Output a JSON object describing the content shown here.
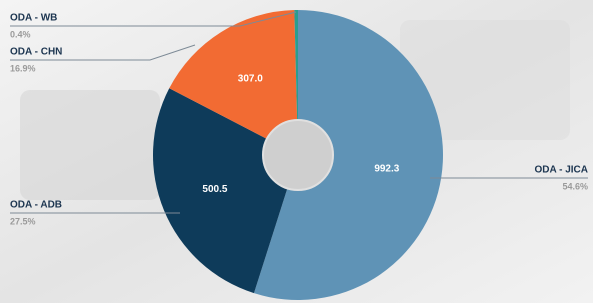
{
  "chart_data": {
    "type": "pie",
    "categories": [
      "ODA - JICA",
      "ODA - ADB",
      "ODA - CHN",
      "ODA - WB"
    ],
    "values": [
      992.3,
      500.5,
      307.0,
      7.3
    ],
    "value_labels": [
      "992.3",
      "500.5",
      "307.0",
      null
    ],
    "percent_labels": [
      "54.6%",
      "27.5%",
      "16.9%",
      "0.4%"
    ],
    "colors": [
      "#5f93b6",
      "#0e3b5a",
      "#f26b33",
      "#2a9d8f"
    ]
  }
}
